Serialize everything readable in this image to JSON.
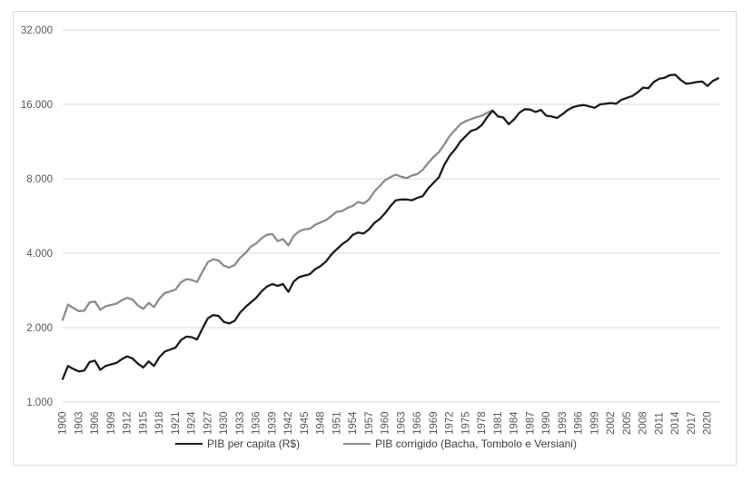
{
  "chart_data": {
    "type": "line",
    "title": "",
    "y_scale": "log2",
    "ylim": [
      1000,
      32000
    ],
    "grid": "horizontal-only",
    "legend_position": "bottom-center",
    "axis_text_color": "#595959",
    "gridline_color": "#d9d9d9",
    "y_ticks": [
      {
        "value": 1000,
        "label": "1.000"
      },
      {
        "value": 2000,
        "label": "2.000"
      },
      {
        "value": 4000,
        "label": "4.000"
      },
      {
        "value": 8000,
        "label": "8.000"
      },
      {
        "value": 16000,
        "label": "16.000"
      },
      {
        "value": 32000,
        "label": "32.000"
      }
    ],
    "x_tick_labels": [
      "1900",
      "1903",
      "1906",
      "1909",
      "1912",
      "1915",
      "1918",
      "1921",
      "1924",
      "1927",
      "1930",
      "1933",
      "1936",
      "1939",
      "1942",
      "1945",
      "1948",
      "1951",
      "1954",
      "1957",
      "1960",
      "1963",
      "1966",
      "1969",
      "1972",
      "1975",
      "1978",
      "1981",
      "1984",
      "1987",
      "1990",
      "1993",
      "1996",
      "1999",
      "2002",
      "2005",
      "2008",
      "2011",
      "2014",
      "2017",
      "2020"
    ],
    "series": [
      {
        "name": "PIB corrigido (Bacha, Tombolo e Versiani)",
        "color": "#8c8c8c",
        "start_year": 1900,
        "end_year": 1980,
        "values": [
          2150,
          2480,
          2400,
          2330,
          2340,
          2530,
          2550,
          2360,
          2440,
          2470,
          2500,
          2580,
          2640,
          2600,
          2460,
          2380,
          2520,
          2420,
          2620,
          2760,
          2800,
          2850,
          3050,
          3140,
          3120,
          3060,
          3360,
          3680,
          3780,
          3740,
          3560,
          3500,
          3580,
          3830,
          4000,
          4250,
          4380,
          4590,
          4750,
          4780,
          4480,
          4560,
          4300,
          4700,
          4900,
          5000,
          5020,
          5210,
          5330,
          5440,
          5650,
          5890,
          5920,
          6100,
          6220,
          6450,
          6350,
          6600,
          7100,
          7480,
          7890,
          8120,
          8320,
          8150,
          8050,
          8250,
          8350,
          8700,
          9250,
          9800,
          10250,
          11000,
          11900,
          12600,
          13300,
          13700,
          13950,
          14200,
          14400,
          14800,
          15100
        ]
      },
      {
        "name": "PIB per capita (R$)",
        "color": "#1c1c1c",
        "start_year": 1900,
        "end_year": 2022,
        "values": [
          1240,
          1400,
          1360,
          1330,
          1340,
          1450,
          1470,
          1350,
          1400,
          1420,
          1440,
          1490,
          1530,
          1500,
          1430,
          1380,
          1460,
          1400,
          1520,
          1600,
          1630,
          1660,
          1780,
          1840,
          1830,
          1790,
          1980,
          2180,
          2250,
          2230,
          2110,
          2080,
          2130,
          2300,
          2420,
          2530,
          2640,
          2800,
          2930,
          3000,
          2950,
          3000,
          2790,
          3070,
          3200,
          3250,
          3290,
          3450,
          3550,
          3700,
          3950,
          4150,
          4350,
          4500,
          4750,
          4850,
          4800,
          5000,
          5300,
          5500,
          5800,
          6200,
          6550,
          6600,
          6600,
          6550,
          6700,
          6800,
          7300,
          7700,
          8100,
          9100,
          9900,
          10500,
          11300,
          11900,
          12500,
          12700,
          13200,
          14200,
          15100,
          14300,
          14150,
          13300,
          13900,
          14800,
          15300,
          15250,
          14900,
          15200,
          14400,
          14300,
          14100,
          14600,
          15200,
          15600,
          15800,
          15900,
          15700,
          15500,
          16000,
          16100,
          16200,
          16100,
          16700,
          17000,
          17300,
          17900,
          18700,
          18600,
          19700,
          20300,
          20500,
          21000,
          21100,
          20100,
          19400,
          19500,
          19700,
          19800,
          19000,
          19900,
          20400
        ]
      }
    ]
  },
  "legend": {
    "items": [
      {
        "label": "PIB per capita (R$)",
        "color": "#1c1c1c"
      },
      {
        "label": "PIB corrigido (Bacha, Tombolo e Versiani)",
        "color": "#8c8c8c"
      }
    ]
  }
}
